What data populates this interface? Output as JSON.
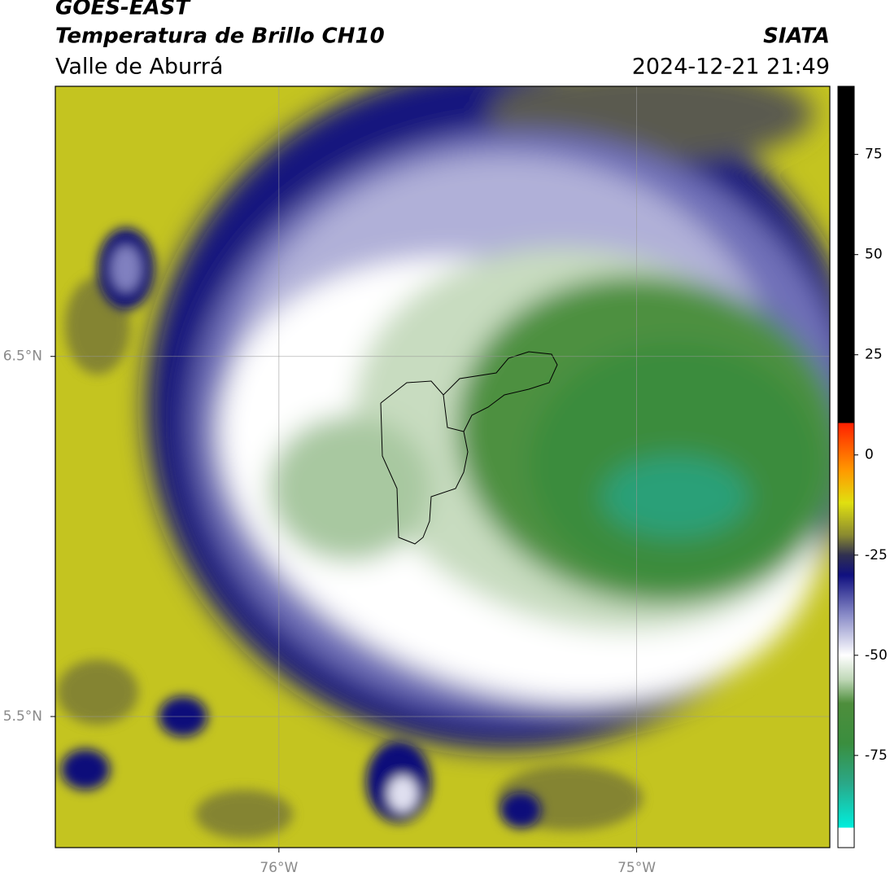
{
  "header": {
    "line1": "GOES-EAST",
    "line2": "Temperatura de Brillo CH10",
    "source": "SIATA",
    "region": "Valle de Aburrá",
    "datetime": "2024-12-21 21:49"
  },
  "map": {
    "xlim": [
      -76.625,
      -74.46
    ],
    "ylim": [
      5.136,
      7.25
    ],
    "xticks": [
      {
        "value": -76,
        "label": "76°W"
      },
      {
        "value": -75,
        "label": "75°W"
      }
    ],
    "yticks": [
      {
        "value": 6.5,
        "label": "6.5°N"
      },
      {
        "value": 5.5,
        "label": "5.5°N"
      }
    ],
    "grid": true
  },
  "colorbar": {
    "clim": [
      -98,
      92
    ],
    "ticks": [
      75,
      50,
      25,
      0,
      -25,
      -50,
      -75
    ],
    "colormap": [
      {
        "value": -98,
        "color": "#ffffff"
      },
      {
        "value": -93,
        "color": "#ffffff"
      },
      {
        "value": -93,
        "color": "#00eedd"
      },
      {
        "value": -82,
        "color": "#2aa888"
      },
      {
        "value": -72,
        "color": "#3a8e3e"
      },
      {
        "value": -62,
        "color": "#4e8e3c"
      },
      {
        "value": -56,
        "color": "#c0d8b8"
      },
      {
        "value": -50,
        "color": "#ffffff"
      },
      {
        "value": -40,
        "color": "#8a8cc8"
      },
      {
        "value": -30,
        "color": "#101080"
      },
      {
        "value": -25,
        "color": "#303050"
      },
      {
        "value": -20,
        "color": "#8a8a30"
      },
      {
        "value": -12,
        "color": "#e0e010"
      },
      {
        "value": -4,
        "color": "#ff9a00"
      },
      {
        "value": 8,
        "color": "#ff2000"
      },
      {
        "value": 8,
        "color": "#000000"
      },
      {
        "value": 92,
        "color": "#000000"
      }
    ]
  }
}
